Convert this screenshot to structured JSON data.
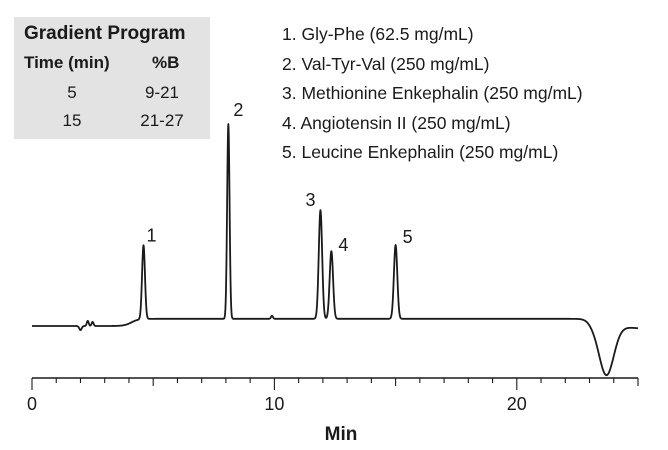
{
  "gradient_program": {
    "title": "Gradient Program",
    "headers": [
      "Time (min)",
      "%B"
    ],
    "rows": [
      [
        "5",
        "9-21"
      ],
      [
        "15",
        "21-27"
      ]
    ]
  },
  "legend": [
    "1. Gly-Phe (62.5 mg/mL)",
    "2. Val-Tyr-Val (250 mg/mL)",
    "3. Methionine Enkephalin (250 mg/mL)",
    "4. Angiotensin II (250 mg/mL)",
    "5. Leucine Enkephalin (250 mg/mL)"
  ],
  "chart_data": {
    "type": "line",
    "title": "",
    "xlabel": "Min",
    "ylabel": "",
    "xlim": [
      0,
      25
    ],
    "ylim": [
      -0.1,
      1.1
    ],
    "grid": false,
    "x_ticks": [
      0,
      10,
      20
    ],
    "x_tick_labels": [
      "0",
      "10",
      "20"
    ],
    "baseline": 0.0,
    "peaks": [
      {
        "label": "1",
        "time": 4.6,
        "height": 0.36
      },
      {
        "label": "2",
        "time": 8.1,
        "height": 0.95
      },
      {
        "label": "3",
        "time": 11.9,
        "height": 0.53
      },
      {
        "label": "4",
        "time": 12.35,
        "height": 0.33
      },
      {
        "label": "5",
        "time": 15.0,
        "height": 0.36
      }
    ],
    "negative_peak": {
      "time": 23.7,
      "depth": -0.24
    }
  }
}
